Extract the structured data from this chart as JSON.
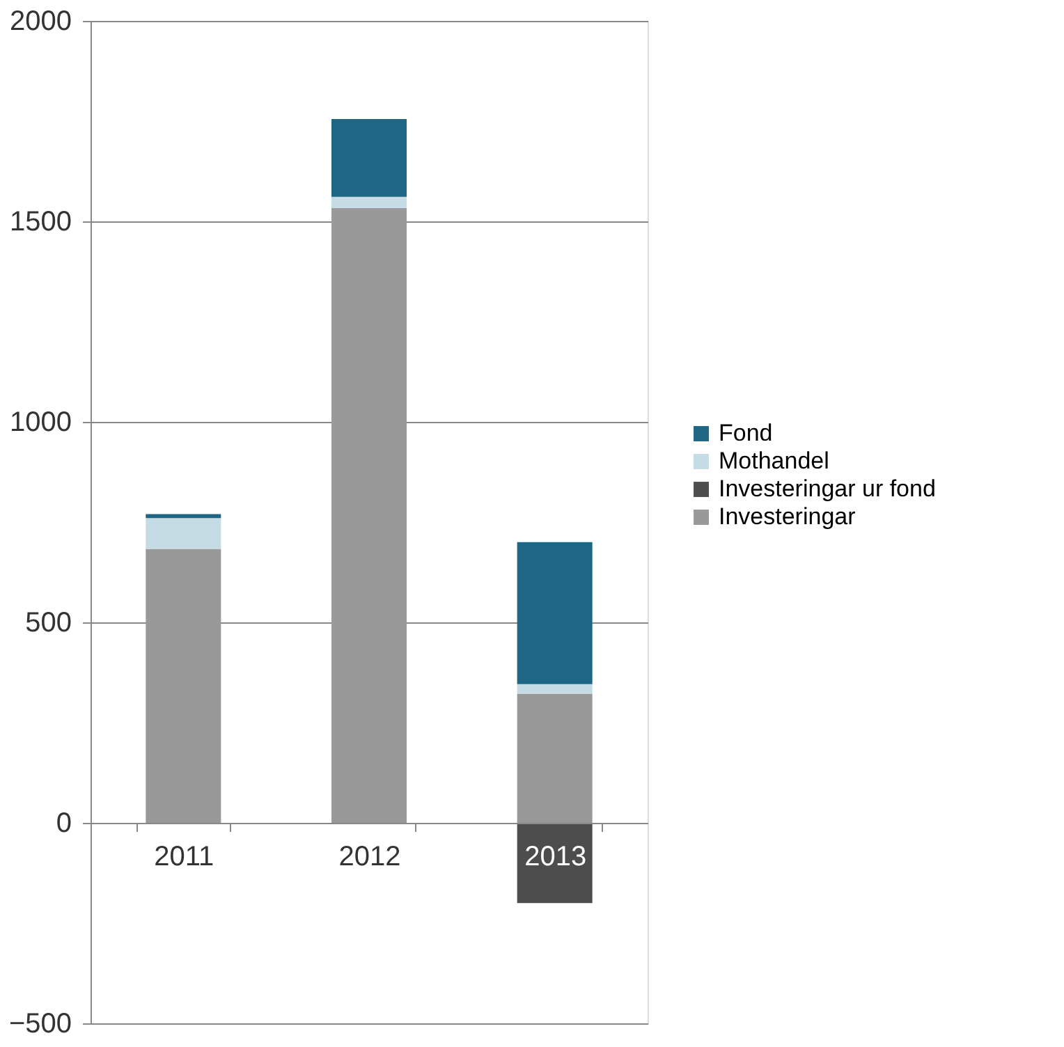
{
  "chart_data": {
    "type": "bar",
    "stacked": true,
    "categories": [
      "2011",
      "2012",
      "2013"
    ],
    "series": [
      {
        "name": "Investeringar",
        "color": "#999999",
        "values": [
          683,
          1533,
          322
        ]
      },
      {
        "name": "Investeringar ur fond",
        "color": "#4d4d4d",
        "values": [
          0,
          0,
          -200
        ]
      },
      {
        "name": "Mothandel",
        "color": "#c5dce5",
        "values": [
          77,
          28,
          24
        ]
      },
      {
        "name": "Fond",
        "color": "#1f6584",
        "values": [
          10,
          194,
          354
        ]
      }
    ],
    "ylim": [
      -500,
      2000
    ],
    "yticks": [
      -500,
      0,
      500,
      1000,
      1500,
      2000
    ],
    "grid": "y",
    "legend": "right"
  }
}
